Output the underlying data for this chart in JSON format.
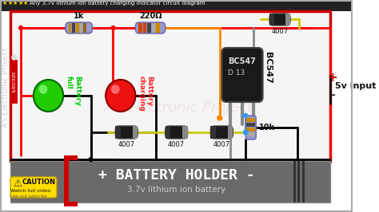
{
  "title_text": "Any 3.7v lithium ion battery charging indicator circuit diagram",
  "star_color": "#FFD700",
  "wire_red": "#ff0000",
  "wire_black": "#000000",
  "wire_blue": "#3399ff",
  "wire_orange": "#ff8800",
  "wire_yellow": "#ffdd00",
  "battery_holder_text": "+ BATTERY HOLDER -",
  "battery_sub_text": "3.7v lithium ion battery",
  "label_1k": "1k",
  "label_220": "220Ω",
  "label_bc547": "BC547",
  "label_d131": "D 13",
  "label_bc547_side": "BC547",
  "label_4007_top": "4007",
  "label_4007_1": "4007",
  "label_4007_2": "4007",
  "label_4007_3": "4007",
  "label_10k": "10k",
  "label_5v": "5v input",
  "label_plus": "+",
  "label_minus": "-",
  "label_battery_full": "Battery\nfull",
  "label_battery_charging": "Battery\ncharging",
  "watermark": "AS Electronic Project",
  "caution_text": "CAUTION",
  "watch_text": "Watch full video",
  "like_text": "Like and subscribe",
  "subscribe_text": "SUBSCRIBE",
  "green_led": "#22cc00",
  "red_led": "#ee1111",
  "res_body": "#8888bb",
  "diode_body": "#111111",
  "transistor_body": "#111111",
  "bg_outer": "#ffffff",
  "bg_inner": "#f0f0f0",
  "battery_bg": "#6a6a6a"
}
